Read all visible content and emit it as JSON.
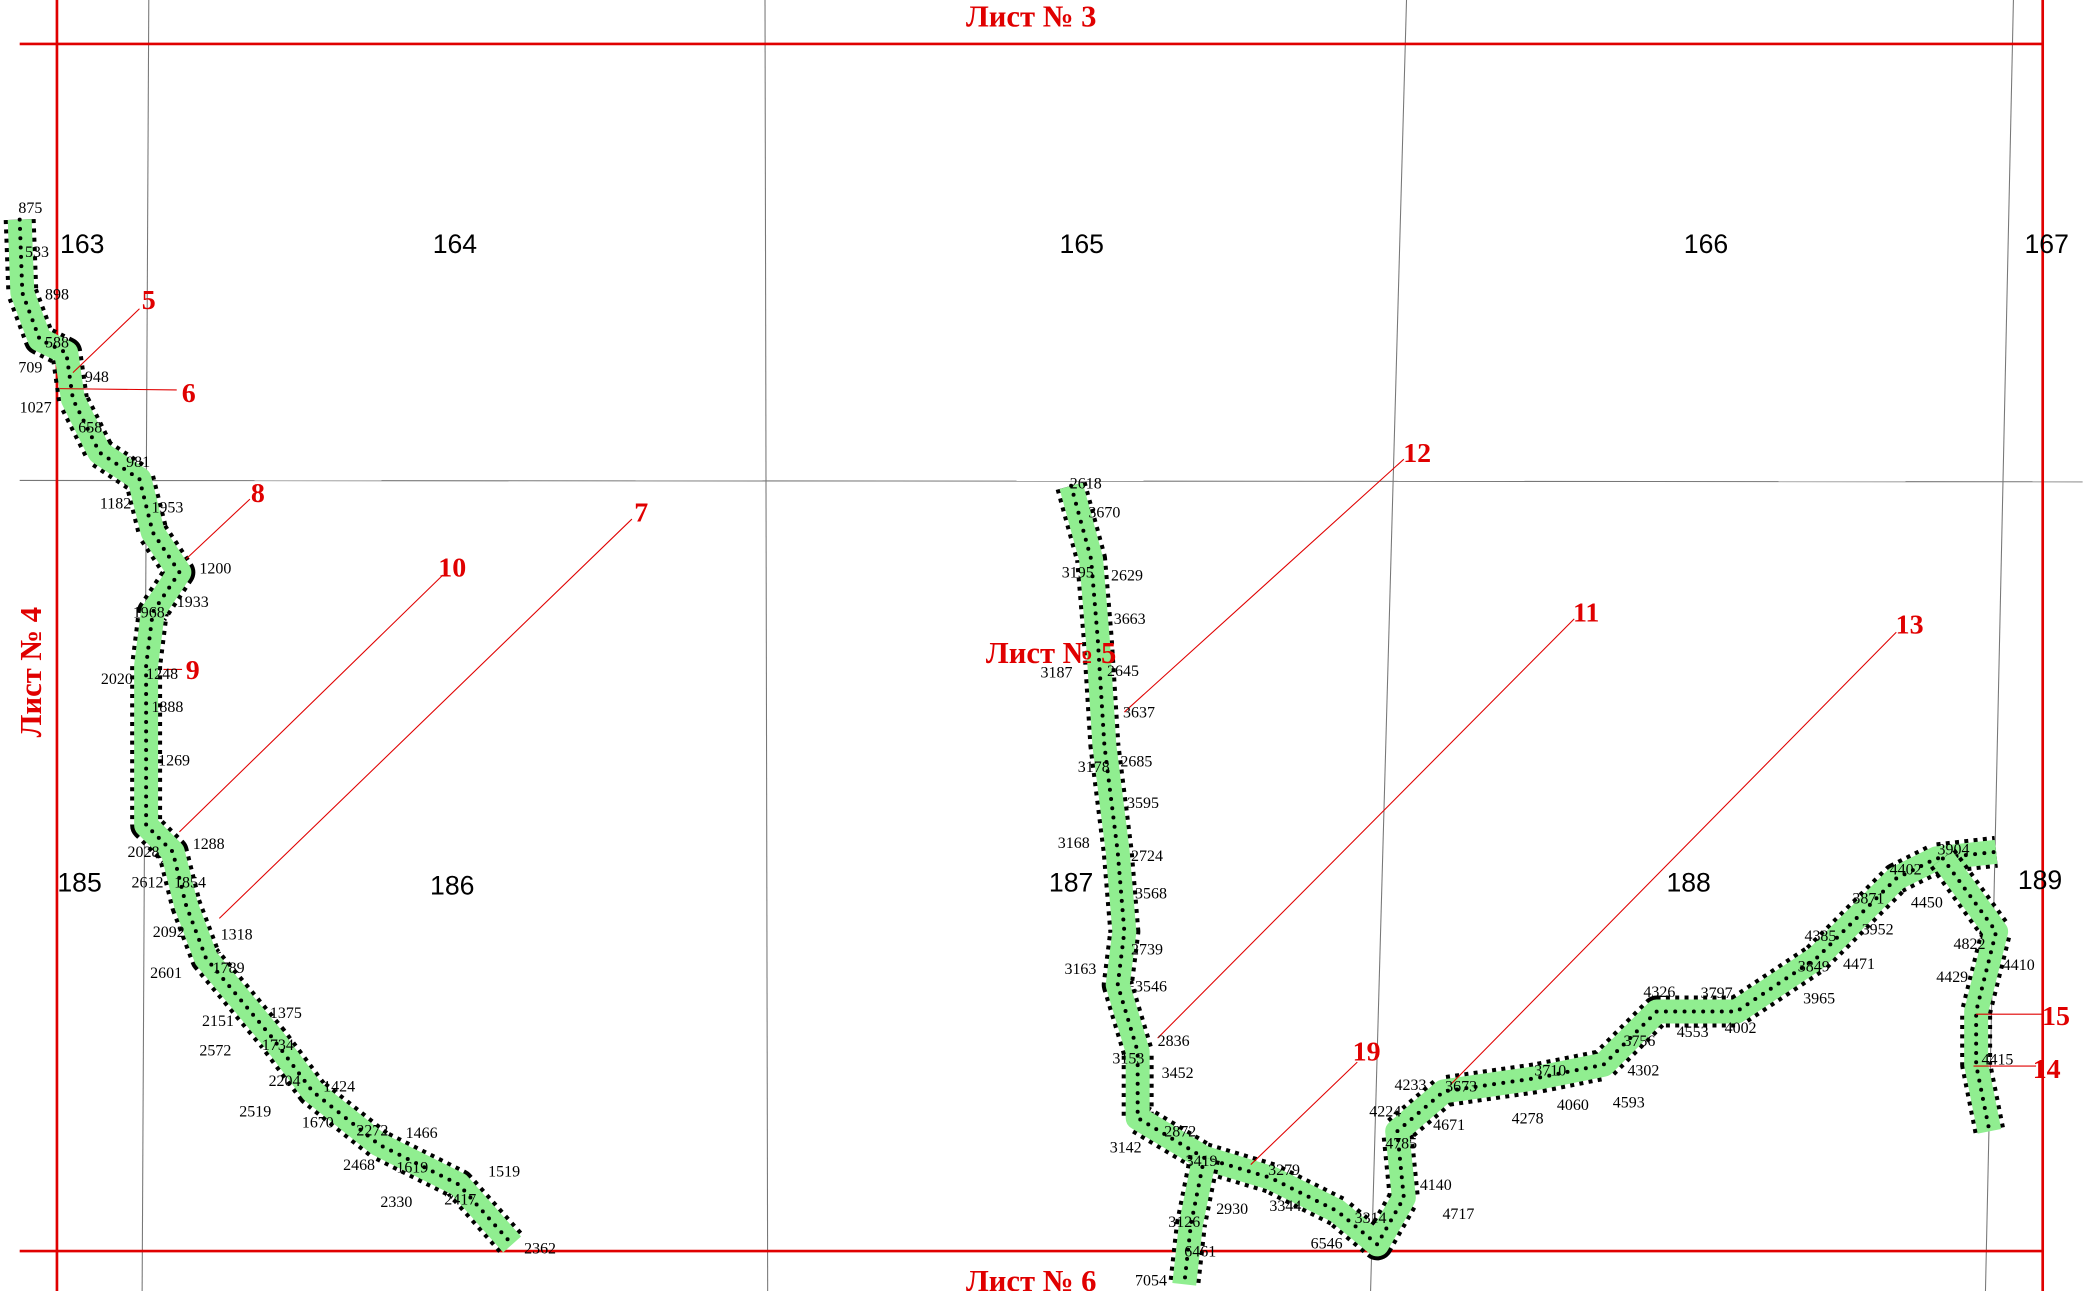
{
  "sheets": [
    "Лист № 3",
    "Лист № 4",
    "Лист № 5",
    "Лист № 6"
  ],
  "quarters": [
    "163",
    "164",
    "165",
    "166",
    "167",
    "185",
    "186",
    "187",
    "188",
    "189"
  ],
  "callouts": [
    "5",
    "6",
    "8",
    "7",
    "10",
    "9",
    "12",
    "11",
    "13",
    "19",
    "15",
    "14"
  ],
  "points": [
    "875",
    "533",
    "898",
    "588",
    "709",
    "948",
    "1027",
    "658",
    "981",
    "1182",
    "1953",
    "1200",
    "1933",
    "1968",
    "2020",
    "1248",
    "1888",
    "1269",
    "1288",
    "2028",
    "2612",
    "1854",
    "2092",
    "1318",
    "1789",
    "2601",
    "1375",
    "2151",
    "1734",
    "2572",
    "2204",
    "1424",
    "2519",
    "1670",
    "2272",
    "1466",
    "2468",
    "1619",
    "1519",
    "2330",
    "2417",
    "2362",
    "2618",
    "3670",
    "3195",
    "2629",
    "3663",
    "3187",
    "2645",
    "3637",
    "3178",
    "2685",
    "3595",
    "3168",
    "2724",
    "3568",
    "2739",
    "3163",
    "3546",
    "2836",
    "3153",
    "3452",
    "2872",
    "3142",
    "3419",
    "3279",
    "2930",
    "3344",
    "3126",
    "3314",
    "6461",
    "6546",
    "7054",
    "3904",
    "4402",
    "3871",
    "4450",
    "3952",
    "4385",
    "4471",
    "3849",
    "3965",
    "4326",
    "3797",
    "4553",
    "4002",
    "3756",
    "4302",
    "3710",
    "4233",
    "3673",
    "4060",
    "4593",
    "4278",
    "4224",
    "4671",
    "4785",
    "4140",
    "4717",
    "4822",
    "4410",
    "4429",
    "4415"
  ]
}
